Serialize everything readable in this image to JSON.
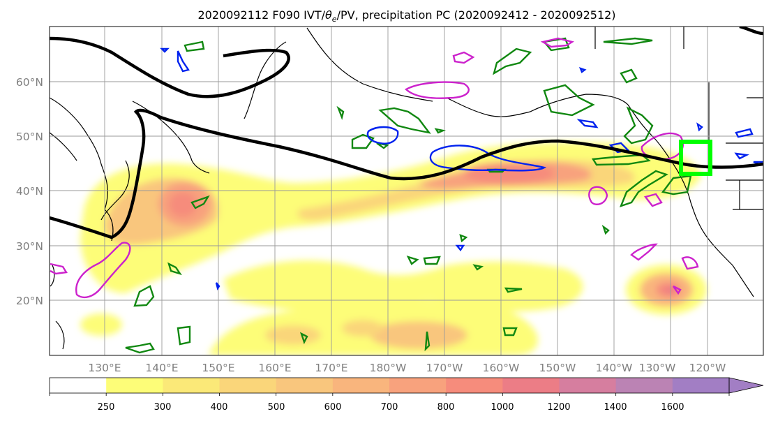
{
  "map": {
    "title_prefix": "2020092112 F090 IVT/",
    "title_theta": "θ",
    "title_theta_sub": "e",
    "title_suffix": "/PV, precipitation PC (2020092412 - 2020092512)",
    "lat_labels": [
      "60°N",
      "50°N",
      "40°N",
      "30°N",
      "20°N"
    ],
    "lon_labels": [
      "130°E",
      "140°E",
      "150°E",
      "160°E",
      "170°E",
      "180°W",
      "170°W",
      "160°W",
      "150°W",
      "140°W",
      "130°W",
      "120°W"
    ]
  },
  "colorbar": {
    "tick_labels": [
      "250",
      "300",
      "400",
      "500",
      "600",
      "700",
      "800",
      "1000",
      "1200",
      "1400",
      "1600"
    ],
    "colors": [
      "#ffffff",
      "#fdfd78",
      "#fbe978",
      "#fad67a",
      "#f9c67d",
      "#f9b57d",
      "#f8a27d",
      "#f68c7c",
      "#ec7d86",
      "#d67e9f",
      "#bb83b4",
      "#a27ec4"
    ]
  },
  "overlay_colors": {
    "jet_line": "#000000",
    "ivt_contour": "#0022ee",
    "theta_contour": "#cc22cc",
    "pv_contour": "#118811",
    "highlight_box": "#00ff00"
  }
}
